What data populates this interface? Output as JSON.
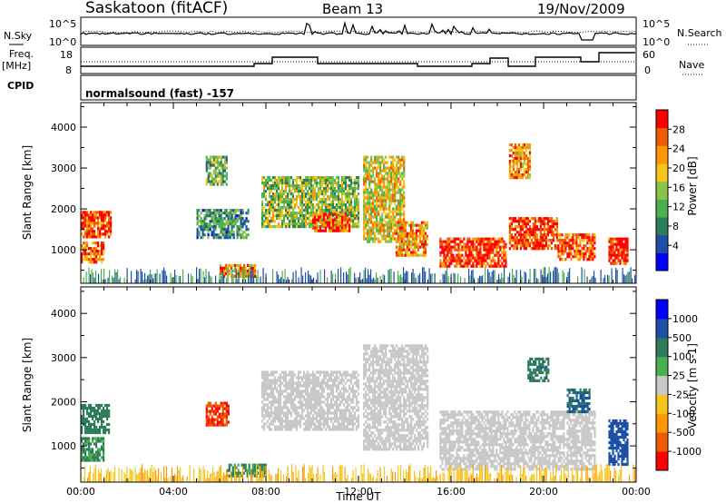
{
  "header": {
    "station": "Saskatoon (fitACF)",
    "beam": "Beam 13",
    "date": "19/Nov/2009"
  },
  "strips": {
    "nsky_label": "N.Sky",
    "nsky_ticks": [
      "10^5",
      "10^0"
    ],
    "nsearch_label": "N.Search",
    "nsearch_ticks": [
      "10^5",
      "10^0"
    ],
    "freq_label_top": "Freq.",
    "freq_label_bottom": "[MHz]",
    "freq_ticks": [
      "18",
      "8"
    ],
    "nave_label": "Nave",
    "nave_ticks": [
      "60",
      "0"
    ],
    "cpid_label": "CPID",
    "cpid_text": "normalsound (fast) -157"
  },
  "axes": {
    "ylabel": "Slant Range [km]",
    "xlabel": "Time UT",
    "yticks": [
      "4000",
      "3000",
      "2000",
      "1000"
    ],
    "xticks": [
      "00:00",
      "04:00",
      "08:00",
      "12:00",
      "16:00",
      "20:00",
      "00:00"
    ]
  },
  "colors": {
    "power": [
      "#0000ff",
      "#1d4fa6",
      "#2e7d5a",
      "#4caf50",
      "#8bc34a",
      "#f5c518",
      "#ff9800",
      "#f05a00",
      "#ff0000"
    ],
    "velocity": [
      "#ff0000",
      "#f05a00",
      "#ff9800",
      "#f5c518",
      "#c8c8c8",
      "#4caf50",
      "#2e7d5a",
      "#1d4fa6",
      "#0000ff"
    ],
    "ground": "#c8c8c8"
  },
  "chart_data": [
    {
      "type": "heatmap",
      "title": "Power",
      "xlabel": "Time UT",
      "ylabel": "Slant Range [km]",
      "xlim": [
        0,
        24
      ],
      "ylim": [
        180,
        4600
      ],
      "colorbar": {
        "label": "Power [dB]",
        "ticks": [
          "28",
          "24",
          "20",
          "16",
          "12",
          "8",
          "4"
        ],
        "range": [
          0,
          30
        ]
      },
      "regions": [
        {
          "t": [
            0.0,
            1.3
          ],
          "r": [
            1350,
            1950
          ],
          "value": 26
        },
        {
          "t": [
            0.0,
            1.0
          ],
          "r": [
            700,
            1200
          ],
          "value": 24
        },
        {
          "t": [
            5.4,
            6.3
          ],
          "r": [
            2600,
            3300
          ],
          "value": 12
        },
        {
          "t": [
            5.0,
            7.2
          ],
          "r": [
            1300,
            2000
          ],
          "value": 10
        },
        {
          "t": [
            6.0,
            7.5
          ],
          "r": [
            350,
            650
          ],
          "value": 22
        },
        {
          "t": [
            7.8,
            12.0
          ],
          "r": [
            1600,
            2800
          ],
          "value": 14
        },
        {
          "t": [
            10.0,
            11.6
          ],
          "r": [
            1450,
            1900
          ],
          "value": 26
        },
        {
          "t": [
            12.2,
            14.0
          ],
          "r": [
            1200,
            3300
          ],
          "value": 18
        },
        {
          "t": [
            13.6,
            15.0
          ],
          "r": [
            900,
            1700
          ],
          "value": 22
        },
        {
          "t": [
            15.5,
            18.4
          ],
          "r": [
            600,
            1300
          ],
          "value": 27
        },
        {
          "t": [
            18.5,
            20.6
          ],
          "r": [
            1050,
            1800
          ],
          "value": 27
        },
        {
          "t": [
            20.6,
            22.2
          ],
          "r": [
            800,
            1400
          ],
          "value": 25
        },
        {
          "t": [
            18.5,
            19.4
          ],
          "r": [
            2800,
            3600
          ],
          "value": 22
        },
        {
          "t": [
            22.8,
            23.6
          ],
          "r": [
            700,
            1300
          ],
          "value": 28
        }
      ]
    },
    {
      "type": "heatmap",
      "title": "Velocity",
      "xlabel": "Time UT",
      "ylabel": "Slant Range [km]",
      "xlim": [
        0,
        24
      ],
      "ylim": [
        180,
        4600
      ],
      "colorbar": {
        "label": "Velocity [m s-1]",
        "ticks": [
          "1000",
          "500",
          "100",
          "25",
          "-25",
          "-100",
          "-500",
          "-1000"
        ],
        "range": [
          -1200,
          1200
        ]
      },
      "regions": [
        {
          "t": [
            0.0,
            1.2
          ],
          "r": [
            1300,
            1950
          ],
          "value": 300
        },
        {
          "t": [
            0.0,
            1.0
          ],
          "r": [
            700,
            1200
          ],
          "value": 150
        },
        {
          "t": [
            5.4,
            6.4
          ],
          "r": [
            1500,
            2000
          ],
          "value": -500
        },
        {
          "t": [
            6.3,
            8.0
          ],
          "r": [
            300,
            600
          ],
          "value": 150
        },
        {
          "t": [
            7.8,
            12.0
          ],
          "r": [
            1400,
            2700
          ],
          "value": 0
        },
        {
          "t": [
            12.2,
            15.0
          ],
          "r": [
            900,
            3300
          ],
          "value": 0
        },
        {
          "t": [
            15.5,
            22.2
          ],
          "r": [
            500,
            1800
          ],
          "value": 0
        },
        {
          "t": [
            19.3,
            20.2
          ],
          "r": [
            2500,
            3000
          ],
          "value": 400
        },
        {
          "t": [
            21.0,
            22.0
          ],
          "r": [
            1800,
            2300
          ],
          "value": 500
        },
        {
          "t": [
            22.8,
            23.6
          ],
          "r": [
            600,
            1600
          ],
          "value": 700
        }
      ]
    }
  ]
}
